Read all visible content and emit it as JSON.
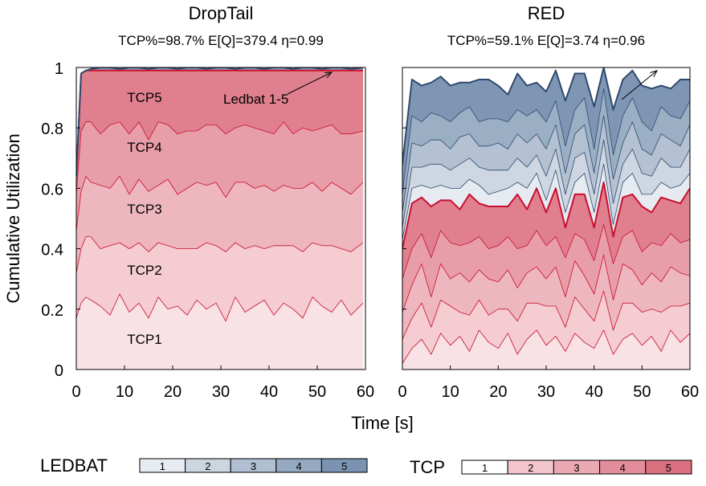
{
  "figure": {
    "ylabel": "Cumulative Utilization",
    "xlabel": "Time [s]",
    "legend_ledbat": {
      "label": "LEDBAT",
      "items": [
        "1",
        "2",
        "3",
        "4",
        "5"
      ],
      "colors": [
        "#e7ecf2",
        "#ccd6e1",
        "#b0bfd1",
        "#95a9c1",
        "#7b93b2"
      ]
    },
    "legend_tcp": {
      "label": "TCP",
      "items": [
        "1",
        "2",
        "3",
        "4",
        "5"
      ],
      "colors": [
        "#ffffff",
        "#f3c6cd",
        "#eba9b3",
        "#e38d9a",
        "#db7080"
      ]
    }
  },
  "chart_data": [
    {
      "type": "area",
      "stacked": true,
      "title": "DropTail",
      "subtitle": "TCP%=98.7% E[Q]=379.4 η=0.99",
      "xlim": [
        0,
        60
      ],
      "ylim": [
        0,
        1
      ],
      "x_ticks": [
        "0",
        "10",
        "20",
        "30",
        "40",
        "50",
        "60"
      ],
      "y_ticks": [
        "0",
        "0.2",
        "0.4",
        "0.6",
        "0.8",
        "1"
      ],
      "x": [
        0,
        1,
        2,
        3,
        5,
        7,
        9,
        11,
        13,
        15,
        17,
        19,
        21,
        23,
        25,
        27,
        29,
        31,
        33,
        35,
        37,
        39,
        41,
        43,
        45,
        47,
        49,
        51,
        53,
        55,
        57,
        59.5
      ],
      "series": [
        {
          "name": "TCP1",
          "values": [
            0.17,
            0.22,
            0.24,
            0.23,
            0.21,
            0.18,
            0.25,
            0.19,
            0.22,
            0.17,
            0.24,
            0.2,
            0.21,
            0.18,
            0.23,
            0.2,
            0.22,
            0.16,
            0.24,
            0.19,
            0.21,
            0.23,
            0.18,
            0.22,
            0.2,
            0.17,
            0.24,
            0.21,
            0.19,
            0.23,
            0.18,
            0.22
          ]
        },
        {
          "name": "TCP2",
          "values": [
            0.15,
            0.18,
            0.2,
            0.21,
            0.19,
            0.23,
            0.17,
            0.21,
            0.2,
            0.22,
            0.18,
            0.21,
            0.19,
            0.22,
            0.17,
            0.22,
            0.19,
            0.23,
            0.18,
            0.21,
            0.2,
            0.17,
            0.23,
            0.19,
            0.21,
            0.22,
            0.18,
            0.2,
            0.22,
            0.17,
            0.21,
            0.2
          ]
        },
        {
          "name": "TCP3",
          "values": [
            0.14,
            0.19,
            0.2,
            0.18,
            0.21,
            0.19,
            0.22,
            0.18,
            0.21,
            0.2,
            0.19,
            0.22,
            0.18,
            0.2,
            0.22,
            0.19,
            0.21,
            0.18,
            0.2,
            0.22,
            0.19,
            0.21,
            0.18,
            0.2,
            0.19,
            0.21,
            0.2,
            0.18,
            0.21,
            0.2,
            0.19,
            0.2
          ]
        },
        {
          "name": "TCP4",
          "values": [
            0.12,
            0.2,
            0.18,
            0.2,
            0.17,
            0.21,
            0.18,
            0.2,
            0.19,
            0.17,
            0.21,
            0.18,
            0.2,
            0.19,
            0.17,
            0.2,
            0.19,
            0.21,
            0.18,
            0.19,
            0.2,
            0.18,
            0.19,
            0.21,
            0.18,
            0.2,
            0.17,
            0.21,
            0.19,
            0.18,
            0.2,
            0.17
          ]
        },
        {
          "name": "TCP5",
          "values": [
            0.06,
            0.19,
            0.17,
            0.17,
            0.21,
            0.18,
            0.17,
            0.21,
            0.17,
            0.23,
            0.17,
            0.18,
            0.21,
            0.2,
            0.2,
            0.18,
            0.18,
            0.21,
            0.19,
            0.18,
            0.19,
            0.2,
            0.21,
            0.17,
            0.21,
            0.19,
            0.2,
            0.19,
            0.18,
            0.21,
            0.21,
            0.2
          ]
        },
        {
          "name": "LEDBAT",
          "values": [
            0.0,
            0.0,
            0.0,
            0.005,
            0.01,
            0.01,
            0.005,
            0.01,
            0.01,
            0.005,
            0.01,
            0.01,
            0.005,
            0.01,
            0.01,
            0.005,
            0.01,
            0.01,
            0.005,
            0.01,
            0.01,
            0.005,
            0.01,
            0.01,
            0.005,
            0.01,
            0.01,
            0.005,
            0.01,
            0.01,
            0.005,
            0.01
          ]
        }
      ],
      "labels": [
        "TCP1",
        "TCP2",
        "TCP3",
        "TCP4",
        "TCP5"
      ],
      "annotation": "Ledbat 1-5"
    },
    {
      "type": "area",
      "stacked": true,
      "title": "RED",
      "subtitle": "TCP%=59.1% E[Q]=3.74 η=0.96",
      "xlim": [
        0,
        60
      ],
      "ylim": [
        0,
        1
      ],
      "x_ticks": [
        "0",
        "10",
        "20",
        "30",
        "40",
        "50",
        "60"
      ],
      "y_ticks": [
        "0",
        "0.2",
        "0.4",
        "0.6",
        "0.8",
        "1"
      ],
      "x": [
        0,
        2,
        4,
        6,
        8,
        10,
        12,
        14,
        16,
        18,
        20,
        22,
        24,
        26,
        28,
        30,
        32,
        34,
        36,
        38,
        40,
        42,
        44,
        46,
        48,
        50,
        52,
        54,
        56,
        58,
        60
      ],
      "series": [
        {
          "name": "TCP1",
          "values": [
            0.02,
            0.07,
            0.1,
            0.05,
            0.12,
            0.08,
            0.11,
            0.06,
            0.13,
            0.09,
            0.07,
            0.12,
            0.05,
            0.1,
            0.13,
            0.08,
            0.11,
            0.06,
            0.12,
            0.09,
            0.07,
            0.13,
            0.05,
            0.1,
            0.12,
            0.08,
            0.11,
            0.06,
            0.13,
            0.09,
            0.12
          ]
        },
        {
          "name": "TCP2",
          "values": [
            0.08,
            0.1,
            0.12,
            0.09,
            0.11,
            0.13,
            0.08,
            0.12,
            0.1,
            0.09,
            0.13,
            0.08,
            0.11,
            0.12,
            0.09,
            0.13,
            0.1,
            0.08,
            0.12,
            0.11,
            0.09,
            0.13,
            0.08,
            0.12,
            0.1,
            0.11,
            0.09,
            0.13,
            0.08,
            0.12,
            0.1
          ]
        },
        {
          "name": "TCP3",
          "values": [
            0.09,
            0.11,
            0.13,
            0.1,
            0.12,
            0.09,
            0.13,
            0.11,
            0.1,
            0.12,
            0.09,
            0.13,
            0.11,
            0.1,
            0.12,
            0.09,
            0.13,
            0.1,
            0.12,
            0.11,
            0.09,
            0.12,
            0.1,
            0.13,
            0.11,
            0.09,
            0.12,
            0.1,
            0.13,
            0.11,
            0.09
          ]
        },
        {
          "name": "TCP4",
          "values": [
            0.11,
            0.12,
            0.1,
            0.13,
            0.11,
            0.12,
            0.09,
            0.13,
            0.11,
            0.1,
            0.12,
            0.11,
            0.13,
            0.09,
            0.12,
            0.11,
            0.1,
            0.13,
            0.09,
            0.12,
            0.11,
            0.1,
            0.12,
            0.09,
            0.13,
            0.11,
            0.1,
            0.12,
            0.11,
            0.1,
            0.12
          ]
        },
        {
          "name": "TCP5",
          "values": [
            0.1,
            0.15,
            0.12,
            0.17,
            0.1,
            0.14,
            0.12,
            0.16,
            0.11,
            0.14,
            0.13,
            0.1,
            0.18,
            0.12,
            0.14,
            0.11,
            0.16,
            0.1,
            0.13,
            0.15,
            0.11,
            0.14,
            0.09,
            0.13,
            0.12,
            0.15,
            0.1,
            0.16,
            0.11,
            0.13,
            0.17
          ]
        },
        {
          "name": "LEDBAT 1",
          "values": [
            0.03,
            0.05,
            0.04,
            0.06,
            0.05,
            0.04,
            0.07,
            0.05,
            0.06,
            0.04,
            0.05,
            0.06,
            0.04,
            0.07,
            0.05,
            0.04,
            0.06,
            0.05,
            0.04,
            0.07,
            0.05,
            0.06,
            0.04,
            0.05,
            0.07,
            0.04,
            0.06,
            0.05,
            0.04,
            0.06,
            0.05
          ]
        },
        {
          "name": "LEDBAT 2",
          "values": [
            0.04,
            0.07,
            0.06,
            0.08,
            0.07,
            0.06,
            0.08,
            0.07,
            0.06,
            0.08,
            0.07,
            0.06,
            0.08,
            0.07,
            0.06,
            0.08,
            0.07,
            0.06,
            0.08,
            0.07,
            0.06,
            0.08,
            0.07,
            0.06,
            0.08,
            0.07,
            0.06,
            0.08,
            0.07,
            0.06,
            0.08
          ]
        },
        {
          "name": "LEDBAT 3",
          "values": [
            0.05,
            0.08,
            0.07,
            0.08,
            0.08,
            0.07,
            0.09,
            0.08,
            0.07,
            0.08,
            0.09,
            0.07,
            0.08,
            0.08,
            0.07,
            0.09,
            0.08,
            0.07,
            0.08,
            0.09,
            0.07,
            0.08,
            0.08,
            0.07,
            0.09,
            0.08,
            0.07,
            0.08,
            0.09,
            0.07,
            0.08
          ]
        },
        {
          "name": "LEDBAT 4",
          "values": [
            0.06,
            0.09,
            0.08,
            0.09,
            0.08,
            0.09,
            0.08,
            0.09,
            0.08,
            0.09,
            0.08,
            0.09,
            0.08,
            0.09,
            0.08,
            0.09,
            0.08,
            0.09,
            0.08,
            0.09,
            0.08,
            0.09,
            0.08,
            0.09,
            0.08,
            0.09,
            0.08,
            0.09,
            0.08,
            0.09,
            0.08
          ]
        },
        {
          "name": "LEDBAT 5",
          "values": [
            0.1,
            0.12,
            0.12,
            0.1,
            0.13,
            0.12,
            0.1,
            0.08,
            0.14,
            0.13,
            0.11,
            0.09,
            0.12,
            0.1,
            0.09,
            0.1,
            0.1,
            0.15,
            0.12,
            0.08,
            0.14,
            0.08,
            0.15,
            0.12,
            0.09,
            0.12,
            0.14,
            0.07,
            0.09,
            0.13,
            0.07
          ]
        }
      ]
    }
  ]
}
